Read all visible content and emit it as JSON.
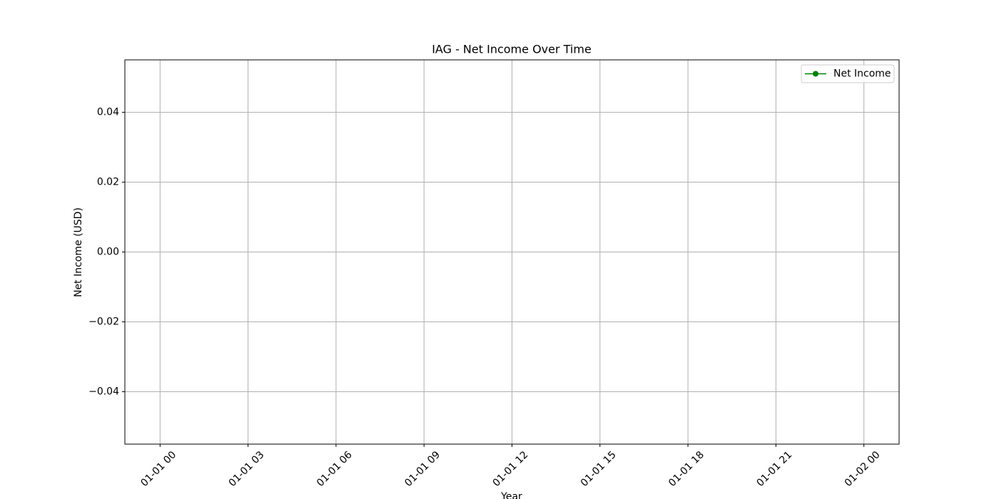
{
  "chart_data": {
    "type": "line",
    "title": "IAG - Net Income Over Time",
    "xlabel": "Year",
    "ylabel": "Net Income (USD)",
    "x": [],
    "series": [
      {
        "name": "Net Income",
        "color": "green",
        "values": []
      }
    ],
    "xlim": [
      -1.2,
      25.2
    ],
    "xticks": [
      {
        "value": 0,
        "label": "01-01 00"
      },
      {
        "value": 3,
        "label": "01-01 03"
      },
      {
        "value": 6,
        "label": "01-01 06"
      },
      {
        "value": 9,
        "label": "01-01 09"
      },
      {
        "value": 12,
        "label": "01-01 12"
      },
      {
        "value": 15,
        "label": "01-01 15"
      },
      {
        "value": 18,
        "label": "01-01 18"
      },
      {
        "value": 21,
        "label": "01-01 21"
      },
      {
        "value": 24,
        "label": "01-02 00"
      }
    ],
    "ylim": [
      -0.055,
      0.055
    ],
    "yticks": [
      {
        "value": -0.04,
        "label": "−0.04"
      },
      {
        "value": -0.02,
        "label": "−0.02"
      },
      {
        "value": 0,
        "label": "0.00"
      },
      0.02,
      0.04
    ],
    "grid": true,
    "legend": "upper right"
  }
}
